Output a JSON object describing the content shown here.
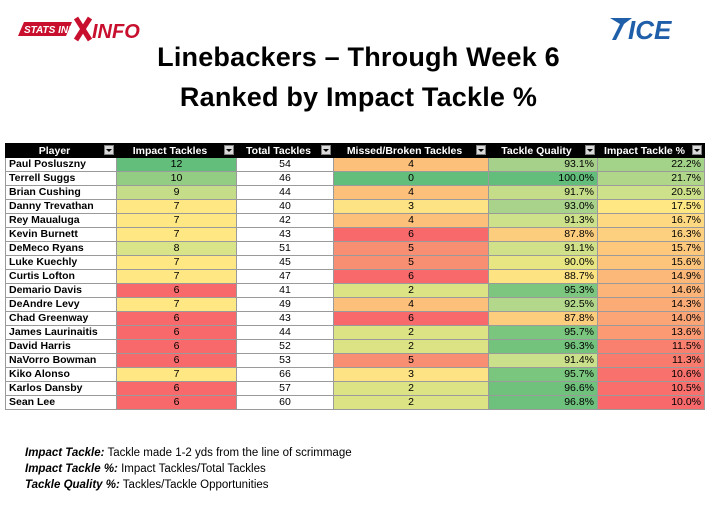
{
  "logos": {
    "left_text": "STATS INFO",
    "right_text": "ICE"
  },
  "title": {
    "line1": "Linebackers – Through Week 6",
    "line2": "Ranked by Impact Tackle %"
  },
  "columns": [
    "Player",
    "Impact Tackles",
    "Total Tackles",
    "Missed/Broken Tackles",
    "Tackle Quality",
    "Impact Tackle %"
  ],
  "rows": [
    {
      "player": "Paul Posluszny",
      "impact": "12",
      "total": "54",
      "missed": "4",
      "quality": "93.1%",
      "pct": "22.2%",
      "c_impact": "#63be7b",
      "c_missed": "#fcc07a",
      "c_quality": "#a6d18a",
      "c_pct": "#a3d389"
    },
    {
      "player": "Terrell Suggs",
      "impact": "10",
      "total": "46",
      "missed": "0",
      "quality": "100.0%",
      "pct": "21.7%",
      "c_impact": "#93cc83",
      "c_missed": "#63be7b",
      "c_quality": "#63be7b",
      "c_pct": "#b0d68a"
    },
    {
      "player": "Brian Cushing",
      "impact": "9",
      "total": "44",
      "missed": "4",
      "quality": "91.7%",
      "pct": "20.5%",
      "c_impact": "#c5dd88",
      "c_missed": "#fcc07a",
      "c_quality": "#c5dd88",
      "c_pct": "#cde08a"
    },
    {
      "player": "Danny Trevathan",
      "impact": "7",
      "total": "40",
      "missed": "3",
      "quality": "93.0%",
      "pct": "17.5%",
      "c_impact": "#ffe884",
      "c_missed": "#fde383",
      "c_quality": "#a9d28b",
      "c_pct": "#ffe884"
    },
    {
      "player": "Rey Maualuga",
      "impact": "7",
      "total": "42",
      "missed": "4",
      "quality": "91.3%",
      "pct": "16.7%",
      "c_impact": "#ffe884",
      "c_missed": "#fcc07a",
      "c_quality": "#cde08a",
      "c_pct": "#fed981"
    },
    {
      "player": "Kevin Burnett",
      "impact": "7",
      "total": "43",
      "missed": "6",
      "quality": "87.8%",
      "pct": "16.3%",
      "c_impact": "#ffe884",
      "c_missed": "#f8696b",
      "c_quality": "#fdcd7e",
      "c_pct": "#fdd07f"
    },
    {
      "player": "DeMeco Ryans",
      "impact": "8",
      "total": "51",
      "missed": "5",
      "quality": "91.1%",
      "pct": "15.7%",
      "c_impact": "#d9e387",
      "c_missed": "#f98f72",
      "c_quality": "#d1e18a",
      "c_pct": "#fdc77c"
    },
    {
      "player": "Luke Kuechly",
      "impact": "7",
      "total": "45",
      "missed": "5",
      "quality": "90.0%",
      "pct": "15.6%",
      "c_impact": "#ffe884",
      "c_missed": "#f98f72",
      "c_quality": "#e8e682",
      "c_pct": "#fdc57c"
    },
    {
      "player": "Curtis Lofton",
      "impact": "7",
      "total": "47",
      "missed": "6",
      "quality": "88.7%",
      "pct": "14.9%",
      "c_impact": "#ffe884",
      "c_missed": "#f8696b",
      "c_quality": "#fee382",
      "c_pct": "#fcb879"
    },
    {
      "player": "Demario Davis",
      "impact": "6",
      "total": "41",
      "missed": "2",
      "quality": "95.3%",
      "pct": "14.6%",
      "c_impact": "#f8696b",
      "c_missed": "#dce384",
      "c_quality": "#7dc67f",
      "c_pct": "#fcb478"
    },
    {
      "player": "DeAndre Levy",
      "impact": "7",
      "total": "49",
      "missed": "4",
      "quality": "92.5%",
      "pct": "14.3%",
      "c_impact": "#ffe884",
      "c_missed": "#fcc07a",
      "c_quality": "#b3d88b",
      "c_pct": "#fbab76"
    },
    {
      "player": "Chad Greenway",
      "impact": "6",
      "total": "43",
      "missed": "6",
      "quality": "87.8%",
      "pct": "14.0%",
      "c_impact": "#f8696b",
      "c_missed": "#f8696b",
      "c_quality": "#fdcd7e",
      "c_pct": "#fba475"
    },
    {
      "player": "James Laurinaitis",
      "impact": "6",
      "total": "44",
      "missed": "2",
      "quality": "95.7%",
      "pct": "13.6%",
      "c_impact": "#f8696b",
      "c_missed": "#dce384",
      "c_quality": "#7bc67e",
      "c_pct": "#fb9a73"
    },
    {
      "player": "David Harris",
      "impact": "6",
      "total": "52",
      "missed": "2",
      "quality": "96.3%",
      "pct": "11.5%",
      "c_impact": "#f8696b",
      "c_missed": "#dce384",
      "c_quality": "#73c37d",
      "c_pct": "#f97f6f"
    },
    {
      "player": "NaVorro Bowman",
      "impact": "6",
      "total": "53",
      "missed": "5",
      "quality": "91.4%",
      "pct": "11.3%",
      "c_impact": "#f8696b",
      "c_missed": "#f98f72",
      "c_quality": "#cbe08a",
      "c_pct": "#f97b6e"
    },
    {
      "player": "Kiko Alonso",
      "impact": "7",
      "total": "66",
      "missed": "3",
      "quality": "95.7%",
      "pct": "10.6%",
      "c_impact": "#ffe884",
      "c_missed": "#fde383",
      "c_quality": "#7bc67e",
      "c_pct": "#f8716c"
    },
    {
      "player": "Karlos Dansby",
      "impact": "6",
      "total": "57",
      "missed": "2",
      "quality": "96.6%",
      "pct": "10.5%",
      "c_impact": "#f8696b",
      "c_missed": "#dce384",
      "c_quality": "#6fc17c",
      "c_pct": "#f86f6c"
    },
    {
      "player": "Sean Lee",
      "impact": "6",
      "total": "60",
      "missed": "2",
      "quality": "96.8%",
      "pct": "10.0%",
      "c_impact": "#f8696b",
      "c_missed": "#dce384",
      "c_quality": "#6ec17c",
      "c_pct": "#f8696b"
    }
  ],
  "footnotes": [
    {
      "term": "Impact Tackle:",
      "text": " Tackle made 1-2 yds from the line of scrimmage"
    },
    {
      "term": "Impact Tackle %:",
      "text": " Impact Tackles/Total Tackles"
    },
    {
      "term": "Tackle Quality %:",
      "text": " Tackles/Tackle Opportunities"
    }
  ]
}
